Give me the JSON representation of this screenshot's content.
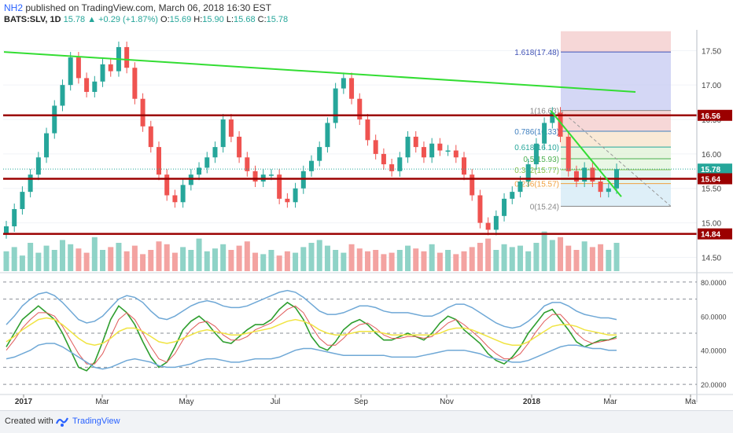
{
  "header": {
    "user": "NH2",
    "published": "published on TradingView.com, March 06, 2018 16:30 EST",
    "symbol": "BATS:SLV, 1D",
    "last": "15.78",
    "change": "▲ +0.29 (+1.87%)",
    "o_label": "O:",
    "o": "15.69",
    "h_label": "H:",
    "h": "15.90",
    "l_label": "L:",
    "l": "15.68",
    "c_label": "C:",
    "c": "15.78"
  },
  "footer": {
    "created": "Created with",
    "brand": "TradingView"
  },
  "colors": {
    "up": "#26a69a",
    "down": "#ef5350",
    "trend": "#33dd33",
    "level": "#9b0000",
    "stoch_k": "#2e9e2e",
    "stoch_d": "#e05a5a",
    "bb": "#6fa8d6",
    "bb_mid": "#f0e442"
  },
  "chart_data": [
    {
      "type": "candlestick",
      "symbol": "BATS:SLV",
      "x_ticks": [
        "2017",
        "Mar",
        "May",
        "Jul",
        "Sep",
        "Nov",
        "2018",
        "Mar",
        "Ma"
      ],
      "y_ticks": [
        "17.50",
        "17.00",
        "16.50",
        "16.00",
        "15.50",
        "15.00",
        "14.50"
      ],
      "ylim": [
        14.3,
        17.8
      ],
      "price_labels": [
        "16.56",
        "15.78",
        "15.64",
        "14.84"
      ],
      "horizontal_levels": [
        16.56,
        15.64,
        14.84
      ],
      "trendlines": [
        {
          "from": [
            "2017-01-01",
            17.48
          ],
          "to": [
            "2018-04-15",
            16.9
          ]
        },
        {
          "from": [
            "2018-01-25",
            16.63
          ],
          "to": [
            "2018-03-01",
            15.38
          ]
        }
      ],
      "fibonacci": [
        {
          "label": "1.618(17.48)",
          "ratio": 1.618,
          "price": 17.48
        },
        {
          "label": "1(16.63)",
          "ratio": 1,
          "price": 16.63
        },
        {
          "label": "0.786(16.33)",
          "ratio": 0.786,
          "price": 16.33
        },
        {
          "label": "0.618(16.10)",
          "ratio": 0.618,
          "price": 16.1
        },
        {
          "label": "0.5(15.93)",
          "ratio": 0.5,
          "price": 15.93
        },
        {
          "label": "0.382(15.77)",
          "ratio": 0.382,
          "price": 15.77
        },
        {
          "label": "0.236(15.57)",
          "ratio": 0.236,
          "price": 15.57
        },
        {
          "label": "0(15.24)",
          "ratio": 0,
          "price": 15.24
        }
      ],
      "close_series": [
        14.95,
        15.2,
        15.45,
        15.7,
        15.95,
        16.3,
        16.7,
        17.0,
        17.4,
        17.1,
        16.9,
        17.05,
        17.3,
        17.2,
        17.55,
        17.25,
        16.8,
        16.4,
        16.1,
        15.7,
        15.4,
        15.3,
        15.55,
        15.7,
        15.8,
        15.95,
        16.1,
        16.5,
        16.25,
        15.95,
        15.75,
        15.6,
        15.7,
        15.7,
        15.35,
        15.3,
        15.5,
        15.75,
        15.9,
        16.1,
        16.45,
        16.95,
        17.1,
        16.8,
        16.5,
        16.2,
        16.0,
        15.85,
        15.75,
        15.95,
        16.25,
        16.1,
        15.95,
        16.15,
        16.05,
        16.05,
        15.95,
        15.7,
        15.4,
        15.0,
        14.9,
        15.1,
        15.35,
        15.45,
        15.6,
        15.85,
        16.15,
        16.45,
        16.6,
        16.25,
        15.75,
        15.6,
        15.8,
        15.6,
        15.45,
        15.5,
        15.78
      ]
    },
    {
      "type": "line",
      "name": "stochastic-rsi",
      "y_ticks": [
        "80.0000",
        "60.0000",
        "40.0000",
        "20.0000"
      ],
      "ylim": [
        15,
        85
      ],
      "dashed_levels": [
        80,
        70,
        50,
        30,
        20
      ],
      "series": [
        {
          "name": "k",
          "values": [
            42,
            50,
            58,
            62,
            66,
            62,
            58,
            50,
            40,
            30,
            28,
            33,
            45,
            58,
            66,
            62,
            55,
            45,
            36,
            30,
            33,
            42,
            52,
            57,
            60,
            56,
            50,
            45,
            44,
            48,
            52,
            55,
            55,
            58,
            64,
            68,
            65,
            58,
            48,
            42,
            40,
            45,
            52,
            56,
            58,
            55,
            50,
            46,
            46,
            48,
            50,
            48,
            46,
            50,
            56,
            60,
            58,
            52,
            48,
            44,
            38,
            34,
            32,
            36,
            42,
            50,
            56,
            62,
            64,
            58,
            52,
            45,
            42,
            44,
            46,
            46,
            48
          ]
        },
        {
          "name": "d",
          "values": [
            40,
            46,
            53,
            58,
            62,
            62,
            60,
            54,
            46,
            38,
            32,
            32,
            38,
            48,
            58,
            62,
            58,
            50,
            42,
            35,
            33,
            38,
            46,
            52,
            56,
            57,
            54,
            49,
            46,
            46,
            48,
            52,
            54,
            56,
            60,
            64,
            66,
            62,
            54,
            47,
            43,
            43,
            47,
            52,
            55,
            56,
            53,
            49,
            47,
            47,
            48,
            48,
            47,
            48,
            52,
            56,
            58,
            55,
            51,
            47,
            42,
            38,
            35,
            35,
            38,
            44,
            51,
            57,
            61,
            61,
            56,
            50,
            46,
            44,
            45,
            46,
            47
          ]
        },
        {
          "name": "basis",
          "values": [
            45,
            48,
            52,
            55,
            58,
            59,
            58,
            55,
            51,
            47,
            44,
            43,
            44,
            47,
            51,
            53,
            53,
            51,
            48,
            45,
            44,
            45,
            47,
            49,
            51,
            52,
            51,
            50,
            49,
            49,
            50,
            51,
            52,
            53,
            55,
            57,
            58,
            57,
            55,
            52,
            50,
            49,
            49,
            50,
            51,
            51,
            51,
            50,
            49,
            49,
            49,
            49,
            49,
            49,
            50,
            52,
            53,
            53,
            52,
            50,
            48,
            46,
            44,
            43,
            43,
            45,
            48,
            51,
            54,
            55,
            55,
            54,
            52,
            51,
            50,
            49,
            49
          ]
        },
        {
          "name": "upper",
          "values": [
            55,
            60,
            66,
            70,
            73,
            74,
            72,
            68,
            63,
            58,
            56,
            57,
            60,
            65,
            70,
            72,
            71,
            68,
            63,
            59,
            58,
            60,
            63,
            66,
            68,
            69,
            68,
            66,
            65,
            65,
            66,
            68,
            70,
            72,
            74,
            75,
            74,
            71,
            67,
            63,
            61,
            61,
            62,
            64,
            66,
            66,
            65,
            63,
            62,
            62,
            62,
            61,
            60,
            60,
            62,
            65,
            67,
            67,
            65,
            62,
            59,
            56,
            54,
            53,
            54,
            57,
            61,
            66,
            68,
            68,
            66,
            63,
            61,
            60,
            59,
            59,
            58
          ]
        },
        {
          "name": "lower",
          "values": [
            35,
            36,
            38,
            40,
            43,
            44,
            44,
            42,
            39,
            36,
            33,
            30,
            29,
            30,
            32,
            34,
            35,
            34,
            33,
            31,
            30,
            30,
            31,
            32,
            34,
            35,
            35,
            34,
            33,
            33,
            34,
            35,
            35,
            35,
            36,
            38,
            40,
            41,
            41,
            40,
            39,
            38,
            37,
            37,
            37,
            37,
            37,
            37,
            36,
            36,
            36,
            36,
            37,
            38,
            39,
            40,
            40,
            40,
            39,
            38,
            36,
            35,
            34,
            33,
            33,
            34,
            36,
            38,
            40,
            42,
            43,
            43,
            42,
            41,
            41,
            40,
            40
          ]
        }
      ]
    }
  ]
}
